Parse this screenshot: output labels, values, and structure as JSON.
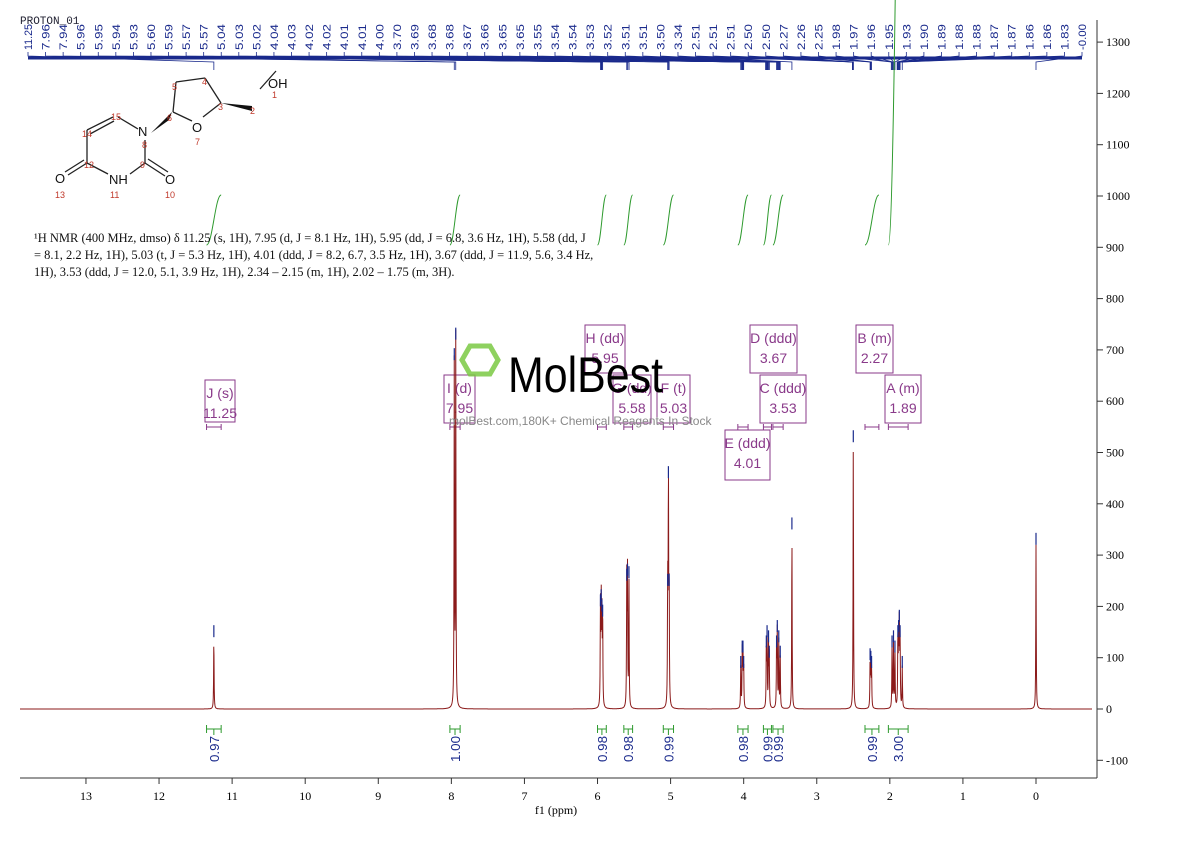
{
  "spectrum_title": "PROTON_01",
  "description": "¹H NMR (400 MHz, dmso) δ 11.25 (s, 1H), 7.95 (d, J = 8.1 Hz, 1H), 5.95 (dd, J = 6.8, 3.6 Hz, 1H), 5.58 (dd, J = 8.1, 2.2 Hz, 1H), 5.03 (t, J = 5.3 Hz, 1H), 4.01 (ddd, J = 8.2, 6.7, 3.5 Hz, 1H), 3.67 (ddd, J = 11.9, 5.6, 3.4 Hz, 1H), 3.53 (ddd, J = 12.0, 5.1, 3.9 Hz, 1H), 2.34 – 2.15 (m, 1H), 2.02 – 1.75 (m, 3H).",
  "watermark": {
    "logo": "MolBest",
    "text": "molBest.com,180K+ Chemical Reagents In Stock"
  },
  "structure": {
    "atoms": [
      "OH",
      "1",
      "2",
      "3",
      "4",
      "5",
      "6",
      "7",
      "O",
      "N",
      "8",
      "9",
      "10",
      "11",
      "NH",
      "12",
      "13",
      "14",
      "15",
      "O",
      "O"
    ]
  },
  "colors": {
    "spectrum": "#8b1a1a",
    "peak_marker": "#1a2a8c",
    "integral": "#2e9a2e",
    "multiplet": "#8a3a8a",
    "axis": "#333333"
  },
  "chart_data": {
    "type": "line",
    "xlabel": "f1 (ppm)",
    "xlim": [
      13.9,
      -0.77
    ],
    "ylim": [
      -130,
      1330
    ],
    "x_axis_reversed": true,
    "x_ticks": [
      "13",
      "12",
      "11",
      "10",
      "9",
      "8",
      "7",
      "6",
      "5",
      "4",
      "3",
      "2",
      "1",
      "0"
    ],
    "y_ticks": [
      "1300",
      "1200",
      "1100",
      "1000",
      "900",
      "800",
      "700",
      "600",
      "500",
      "400",
      "300",
      "200",
      "100",
      "0",
      "-100"
    ],
    "grid": false,
    "peak_labels": [
      "11.25",
      "7.96",
      "7.94",
      "5.96",
      "5.95",
      "5.94",
      "5.93",
      "5.60",
      "5.59",
      "5.57",
      "5.57",
      "5.04",
      "5.03",
      "5.02",
      "4.04",
      "4.03",
      "4.02",
      "4.02",
      "4.01",
      "4.01",
      "4.00",
      "3.70",
      "3.69",
      "3.68",
      "3.68",
      "3.67",
      "3.66",
      "3.65",
      "3.65",
      "3.55",
      "3.54",
      "3.54",
      "3.53",
      "3.52",
      "3.51",
      "3.51",
      "3.50",
      "3.34",
      "2.51",
      "2.51",
      "2.51",
      "2.50",
      "2.50",
      "2.27",
      "2.26",
      "2.25",
      "1.98",
      "1.97",
      "1.96",
      "1.95",
      "1.93",
      "1.90",
      "1.89",
      "1.88",
      "1.88",
      "1.87",
      "1.87",
      "1.86",
      "1.86",
      "1.83",
      "-0.00"
    ],
    "peaks": [
      {
        "ppm": 11.25,
        "intensity": 140
      },
      {
        "ppm": 7.96,
        "intensity": 680
      },
      {
        "ppm": 7.94,
        "intensity": 720
      },
      {
        "ppm": 5.96,
        "intensity": 200
      },
      {
        "ppm": 5.95,
        "intensity": 210
      },
      {
        "ppm": 5.94,
        "intensity": 190
      },
      {
        "ppm": 5.93,
        "intensity": 180
      },
      {
        "ppm": 5.6,
        "intensity": 250
      },
      {
        "ppm": 5.59,
        "intensity": 260
      },
      {
        "ppm": 5.57,
        "intensity": 255
      },
      {
        "ppm": 5.04,
        "intensity": 240
      },
      {
        "ppm": 5.03,
        "intensity": 450
      },
      {
        "ppm": 5.02,
        "intensity": 240
      },
      {
        "ppm": 4.04,
        "intensity": 80
      },
      {
        "ppm": 4.02,
        "intensity": 110
      },
      {
        "ppm": 4.01,
        "intensity": 110
      },
      {
        "ppm": 4.0,
        "intensity": 80
      },
      {
        "ppm": 3.69,
        "intensity": 120
      },
      {
        "ppm": 3.68,
        "intensity": 140
      },
      {
        "ppm": 3.66,
        "intensity": 130
      },
      {
        "ppm": 3.65,
        "intensity": 100
      },
      {
        "ppm": 3.55,
        "intensity": 120
      },
      {
        "ppm": 3.54,
        "intensity": 150
      },
      {
        "ppm": 3.52,
        "intensity": 130
      },
      {
        "ppm": 3.5,
        "intensity": 100
      },
      {
        "ppm": 3.34,
        "intensity": 350
      },
      {
        "ppm": 2.5,
        "intensity": 520
      },
      {
        "ppm": 2.27,
        "intensity": 95
      },
      {
        "ppm": 2.26,
        "intensity": 90
      },
      {
        "ppm": 2.25,
        "intensity": 80
      },
      {
        "ppm": 1.97,
        "intensity": 120
      },
      {
        "ppm": 1.95,
        "intensity": 130
      },
      {
        "ppm": 1.93,
        "intensity": 110
      },
      {
        "ppm": 1.89,
        "intensity": 140
      },
      {
        "ppm": 1.88,
        "intensity": 150
      },
      {
        "ppm": 1.87,
        "intensity": 170
      },
      {
        "ppm": 1.86,
        "intensity": 140
      },
      {
        "ppm": 1.83,
        "intensity": 80
      },
      {
        "ppm": 0.0,
        "intensity": 320
      }
    ],
    "integrals": [
      {
        "from": 11.35,
        "to": 11.15,
        "value": "0.97"
      },
      {
        "from": 8.02,
        "to": 7.88,
        "value": "1.00"
      },
      {
        "from": 6.0,
        "to": 5.88,
        "value": "0.98"
      },
      {
        "from": 5.64,
        "to": 5.52,
        "value": "0.98"
      },
      {
        "from": 5.1,
        "to": 4.96,
        "value": "0.99"
      },
      {
        "from": 4.08,
        "to": 3.94,
        "value": "0.98"
      },
      {
        "from": 3.73,
        "to": 3.62,
        "value": "0.99"
      },
      {
        "from": 3.6,
        "to": 3.46,
        "value": "0.99"
      },
      {
        "from": 2.34,
        "to": 2.15,
        "value": "0.99"
      },
      {
        "from": 2.02,
        "to": 1.75,
        "value": "3.00"
      }
    ],
    "multiplets": [
      {
        "id": "J",
        "type": "s",
        "shift": "11.25"
      },
      {
        "id": "I",
        "type": "d",
        "shift": "7.95"
      },
      {
        "id": "H",
        "type": "dd",
        "shift": "5.95"
      },
      {
        "id": "G",
        "type": "dd",
        "shift": "5.58"
      },
      {
        "id": "F",
        "type": "t",
        "shift": "5.03"
      },
      {
        "id": "E",
        "type": "ddd",
        "shift": "4.01"
      },
      {
        "id": "D",
        "type": "ddd",
        "shift": "3.67"
      },
      {
        "id": "C",
        "type": "ddd",
        "shift": "3.53"
      },
      {
        "id": "B",
        "type": "m",
        "shift": "2.27"
      },
      {
        "id": "A",
        "type": "m",
        "shift": "1.89"
      }
    ]
  }
}
